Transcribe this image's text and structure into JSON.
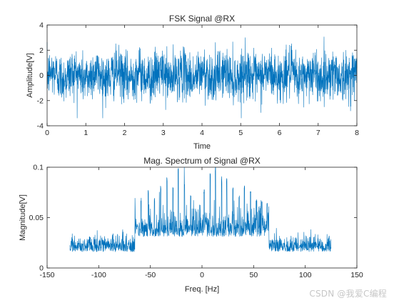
{
  "colors": {
    "series": "#0072BD",
    "axis": "#262626",
    "background": "#ffffff"
  },
  "watermark": "CSDN @我爱C编程",
  "chart_data": [
    {
      "type": "line",
      "title": "FSK Signal @RX",
      "xlabel": "Time",
      "ylabel": "Amplitude[V]",
      "xlim": [
        0,
        8
      ],
      "ylim": [
        -4,
        4
      ],
      "xticks": [
        0,
        1,
        2,
        3,
        4,
        5,
        6,
        7,
        8
      ],
      "yticks": [
        -4,
        -2,
        0,
        2,
        4
      ],
      "grid": false,
      "series": [
        {
          "x_range": [
            0,
            8
          ],
          "sample_count": 2000,
          "mean": 0,
          "std": 1.0,
          "min_peak": -3.4,
          "max_peak": 3.3,
          "description": "noisy received FSK waveform"
        }
      ]
    },
    {
      "type": "line",
      "title": "Mag. Spectrum of Signal @RX",
      "xlabel": "Freq. [Hz]",
      "ylabel": "Magnitude[V]",
      "xlim": [
        -150,
        150
      ],
      "ylim": [
        0,
        0.1
      ],
      "xticks": [
        -150,
        -100,
        -50,
        0,
        50,
        100,
        150
      ],
      "yticks": [
        0,
        0.05,
        0.1
      ],
      "ytick_labels": [
        "0",
        "0.05",
        "0.1"
      ],
      "grid": false,
      "series": [
        {
          "x_range": [
            -128,
            125
          ],
          "noise_floor": 0.02,
          "elevated_band": [
            -65,
            65
          ],
          "elevated_level": 0.035,
          "peak_max": 0.1
        }
      ]
    }
  ]
}
